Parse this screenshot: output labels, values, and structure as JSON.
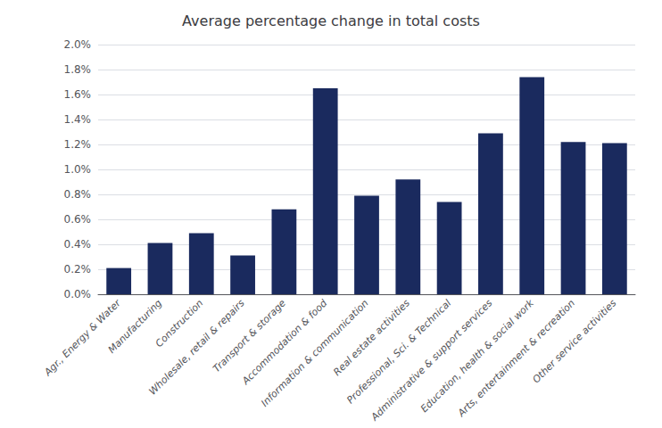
{
  "chart_data": {
    "type": "bar",
    "title": "Average percentage change in total costs",
    "categories": [
      "Agr., Energy & Water",
      "Manufacturing",
      "Construction",
      "Wholesale, retail & repairs",
      "Transport & storage",
      "Accommodation & food",
      "Information & communication",
      "Real estate activities",
      "Professional, Sci. & Technical",
      "Administrative & support services",
      "Education, health & social work",
      "Arts, entertainment & recreation",
      "Other service activities"
    ],
    "values": [
      0.0021,
      0.0041,
      0.0049,
      0.0031,
      0.0068,
      0.0165,
      0.0079,
      0.0092,
      0.0074,
      0.0129,
      0.0174,
      0.0122,
      0.0121
    ],
    "color": "#1a2a5e",
    "ylim": [
      0,
      0.02
    ],
    "yticks": [
      {
        "value": 0.0,
        "label": "0.0%"
      },
      {
        "value": 0.002,
        "label": "0.2%"
      },
      {
        "value": 0.004,
        "label": "0.4%"
      },
      {
        "value": 0.006,
        "label": "0.6%"
      },
      {
        "value": 0.008,
        "label": "0.8%"
      },
      {
        "value": 0.01,
        "label": "1.0%"
      },
      {
        "value": 0.012,
        "label": "1.2%"
      },
      {
        "value": 0.014,
        "label": "1.4%"
      },
      {
        "value": 0.016,
        "label": "1.6%"
      },
      {
        "value": 0.018,
        "label": "1.8%"
      },
      {
        "value": 0.02,
        "label": "2.0%"
      }
    ],
    "grid": true
  }
}
